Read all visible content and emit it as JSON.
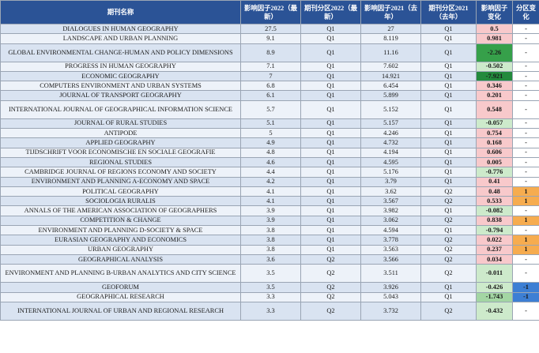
{
  "header": {
    "name": "期刊名称",
    "if2022": "影响因子2022（最新）",
    "q2022": "期刊分区2022（最新）",
    "if2021": "影响因子2021（去年）",
    "q2021": "期刊分区2021（去年）",
    "if_change": "影响因子变化",
    "q_change": "分区变化"
  },
  "rows": [
    {
      "name": "DIALOGUES IN HUMAN GEOGRAPHY",
      "if2022": "27.5",
      "q2022": "Q1",
      "if2021": "27",
      "q2021": "Q1",
      "if_change": "0.5",
      "q_change": "-",
      "if_cls": "pos",
      "q_cls": "dash"
    },
    {
      "name": "LANDSCAPE AND URBAN PLANNING",
      "if2022": "9.1",
      "q2022": "Q1",
      "if2021": "8.119",
      "q2021": "Q1",
      "if_change": "0.981",
      "q_change": "-",
      "if_cls": "pos",
      "q_cls": "dash"
    },
    {
      "name": "GLOBAL ENVIRONMENTAL CHANGE-HUMAN AND POLICY DIMENSIONS",
      "if2022": "8.9",
      "q2022": "Q1",
      "if2021": "11.16",
      "q2021": "Q1",
      "if_change": "-2.26",
      "q_change": "-",
      "if_cls": "neg3",
      "q_cls": "dash",
      "tall": true
    },
    {
      "name": "PROGRESS IN HUMAN GEOGRAPHY",
      "if2022": "7.1",
      "q2022": "Q1",
      "if2021": "7.602",
      "q2021": "Q1",
      "if_change": "-0.502",
      "q_change": "-",
      "if_cls": "neg1",
      "q_cls": "dash"
    },
    {
      "name": "ECONOMIC GEOGRAPHY",
      "if2022": "7",
      "q2022": "Q1",
      "if2021": "14.921",
      "q2021": "Q1",
      "if_change": "-7.921",
      "q_change": "-",
      "if_cls": "neg4",
      "q_cls": "dash"
    },
    {
      "name": "COMPUTERS ENVIRONMENT AND URBAN SYSTEMS",
      "if2022": "6.8",
      "q2022": "Q1",
      "if2021": "6.454",
      "q2021": "Q1",
      "if_change": "0.346",
      "q_change": "-",
      "if_cls": "pos",
      "q_cls": "dash"
    },
    {
      "name": "JOURNAL OF TRANSPORT GEOGRAPHY",
      "if2022": "6.1",
      "q2022": "Q1",
      "if2021": "5.899",
      "q2021": "Q1",
      "if_change": "0.201",
      "q_change": "-",
      "if_cls": "pos",
      "q_cls": "dash"
    },
    {
      "name": "INTERNATIONAL JOURNAL OF GEOGRAPHICAL INFORMATION SCIENCE",
      "if2022": "5.7",
      "q2022": "Q1",
      "if2021": "5.152",
      "q2021": "Q1",
      "if_change": "0.548",
      "q_change": "-",
      "if_cls": "pos",
      "q_cls": "dash",
      "tall": true
    },
    {
      "name": "JOURNAL OF RURAL STUDIES",
      "if2022": "5.1",
      "q2022": "Q1",
      "if2021": "5.157",
      "q2021": "Q1",
      "if_change": "-0.057",
      "q_change": "-",
      "if_cls": "neg1",
      "q_cls": "dash"
    },
    {
      "name": "ANTIPODE",
      "if2022": "5",
      "q2022": "Q1",
      "if2021": "4.246",
      "q2021": "Q1",
      "if_change": "0.754",
      "q_change": "-",
      "if_cls": "pos",
      "q_cls": "dash"
    },
    {
      "name": "APPLIED GEOGRAPHY",
      "if2022": "4.9",
      "q2022": "Q1",
      "if2021": "4.732",
      "q2021": "Q1",
      "if_change": "0.168",
      "q_change": "-",
      "if_cls": "pos",
      "q_cls": "dash"
    },
    {
      "name": "TIJDSCHRIFT VOOR ECONOMISCHE EN SOCIALE GEOGRAFIE",
      "if2022": "4.8",
      "q2022": "Q1",
      "if2021": "4.194",
      "q2021": "Q1",
      "if_change": "0.606",
      "q_change": "-",
      "if_cls": "pos",
      "q_cls": "dash"
    },
    {
      "name": "REGIONAL STUDIES",
      "if2022": "4.6",
      "q2022": "Q1",
      "if2021": "4.595",
      "q2021": "Q1",
      "if_change": "0.005",
      "q_change": "-",
      "if_cls": "pos",
      "q_cls": "dash"
    },
    {
      "name": "CAMBRIDGE JOURNAL OF REGIONS ECONOMY AND SOCIETY",
      "if2022": "4.4",
      "q2022": "Q1",
      "if2021": "5.176",
      "q2021": "Q1",
      "if_change": "-0.776",
      "q_change": "-",
      "if_cls": "neg1",
      "q_cls": "dash"
    },
    {
      "name": "ENVIRONMENT AND PLANNING A-ECONOMY AND SPACE",
      "if2022": "4.2",
      "q2022": "Q1",
      "if2021": "3.79",
      "q2021": "Q1",
      "if_change": "0.41",
      "q_change": "-",
      "if_cls": "pos",
      "q_cls": "dash"
    },
    {
      "name": "POLITICAL GEOGRAPHY",
      "if2022": "4.1",
      "q2022": "Q1",
      "if2021": "3.62",
      "q2021": "Q2",
      "if_change": "0.48",
      "q_change": "1",
      "if_cls": "pos",
      "q_cls": "up"
    },
    {
      "name": "SOCIOLOGIA RURALIS",
      "if2022": "4.1",
      "q2022": "Q1",
      "if2021": "3.567",
      "q2021": "Q2",
      "if_change": "0.533",
      "q_change": "1",
      "if_cls": "pos",
      "q_cls": "up"
    },
    {
      "name": "ANNALS OF THE AMERICAN ASSOCIATION OF GEOGRAPHERS",
      "if2022": "3.9",
      "q2022": "Q1",
      "if2021": "3.982",
      "q2021": "Q1",
      "if_change": "-0.082",
      "q_change": "-",
      "if_cls": "neg1",
      "q_cls": "dash"
    },
    {
      "name": "COMPETITION & CHANGE",
      "if2022": "3.9",
      "q2022": "Q1",
      "if2021": "3.062",
      "q2021": "Q2",
      "if_change": "0.838",
      "q_change": "1",
      "if_cls": "pos",
      "q_cls": "up"
    },
    {
      "name": "ENVIRONMENT AND PLANNING D-SOCIETY & SPACE",
      "if2022": "3.8",
      "q2022": "Q1",
      "if2021": "4.594",
      "q2021": "Q1",
      "if_change": "-0.794",
      "q_change": "-",
      "if_cls": "neg1",
      "q_cls": "dash"
    },
    {
      "name": "EURASIAN GEOGRAPHY AND ECONOMICS",
      "if2022": "3.8",
      "q2022": "Q1",
      "if2021": "3.778",
      "q2021": "Q2",
      "if_change": "0.022",
      "q_change": "1",
      "if_cls": "pos",
      "q_cls": "up"
    },
    {
      "name": "URBAN GEOGRAPHY",
      "if2022": "3.8",
      "q2022": "Q1",
      "if2021": "3.563",
      "q2021": "Q2",
      "if_change": "0.237",
      "q_change": "1",
      "if_cls": "pos",
      "q_cls": "up"
    },
    {
      "name": "GEOGRAPHICAL ANALYSIS",
      "if2022": "3.6",
      "q2022": "Q2",
      "if2021": "3.566",
      "q2021": "Q2",
      "if_change": "0.034",
      "q_change": "-",
      "if_cls": "pos",
      "q_cls": "dash"
    },
    {
      "name": "ENVIRONMENT AND PLANNING B-URBAN ANALYTICS AND CITY SCIENCE",
      "if2022": "3.5",
      "q2022": "Q2",
      "if2021": "3.511",
      "q2021": "Q2",
      "if_change": "-0.011",
      "q_change": "-",
      "if_cls": "neg1",
      "q_cls": "dash",
      "tall": true
    },
    {
      "name": "GEOFORUM",
      "if2022": "3.5",
      "q2022": "Q2",
      "if2021": "3.926",
      "q2021": "Q1",
      "if_change": "-0.426",
      "q_change": "-1",
      "if_cls": "neg1",
      "q_cls": "down"
    },
    {
      "name": "GEOGRAPHICAL RESEARCH",
      "if2022": "3.3",
      "q2022": "Q2",
      "if2021": "5.043",
      "q2021": "Q1",
      "if_change": "-1.743",
      "q_change": "-1",
      "if_cls": "neg2",
      "q_cls": "down"
    },
    {
      "name": "INTERNATIONAL JOURNAL OF URBAN AND REGIONAL RESEARCH",
      "if2022": "3.3",
      "q2022": "Q2",
      "if2021": "3.732",
      "q2021": "Q2",
      "if_change": "-0.432",
      "q_change": "-",
      "if_cls": "neg1",
      "q_cls": "dash",
      "tall": true
    }
  ]
}
